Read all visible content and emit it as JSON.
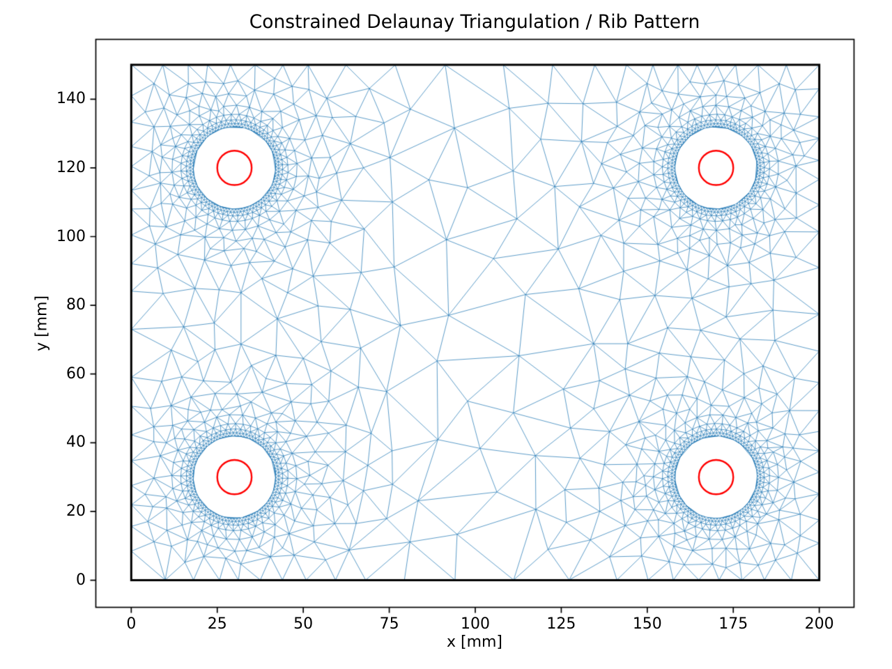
{
  "chart_data": {
    "type": "triangulation-mesh",
    "title": "Constrained Delaunay Triangulation / Rib Pattern",
    "xlabel": "x [mm]",
    "ylabel": "y [mm]",
    "xticks": [
      0,
      25,
      50,
      75,
      100,
      125,
      150,
      175,
      200
    ],
    "yticks": [
      0,
      20,
      40,
      60,
      80,
      100,
      120,
      140
    ],
    "xlim": [
      -10.3,
      210.1
    ],
    "ylim": [
      -7.9,
      157.4
    ],
    "aspect": "equal",
    "grid": false,
    "legend": null,
    "domain": {
      "x": [
        0,
        200
      ],
      "y": [
        0,
        150
      ]
    },
    "holes": {
      "centers": [
        [
          30,
          30
        ],
        [
          170,
          30
        ],
        [
          30,
          120
        ],
        [
          170,
          120
        ]
      ],
      "hole_radius_mm": 12,
      "red_circle_radius_mm": 5
    },
    "mesh": {
      "seed": 11,
      "color": "#1f77b4",
      "alpha": 0.9,
      "line_width": 0.8,
      "size_min_mm": 0.95,
      "size_grade": 0.32,
      "size_max_mm": 18,
      "rib_rings": [
        [
          0,
          84
        ],
        [
          0.9,
          84
        ],
        [
          2.0,
          60
        ],
        [
          3.6,
          44
        ],
        [
          6.2,
          30
        ]
      ]
    },
    "styles": {
      "background": "#ffffff",
      "boundary_color": "#000000",
      "boundary_width": 3,
      "circle_color": "#ff0000",
      "circle_width": 2.4,
      "spine_color": "#000000",
      "tick_color": "#000000"
    }
  }
}
